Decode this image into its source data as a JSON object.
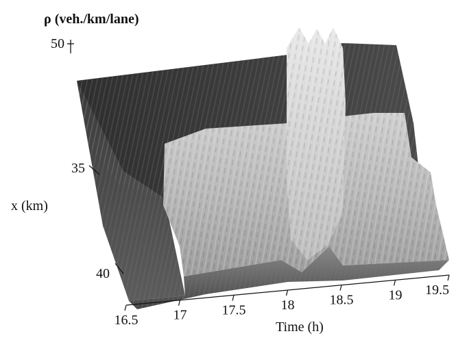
{
  "chart_data": {
    "type": "surface3d",
    "title": "",
    "zlabel": "ρ (veh./km/lane)",
    "ylabel": "x (km)",
    "xlabel": "Time (h)",
    "x_ticks": [
      "16.5",
      "17",
      "17.5",
      "18",
      "18.5",
      "19",
      "19.5"
    ],
    "y_ticks": [
      "35",
      "40"
    ],
    "z_ticks": [
      "50"
    ],
    "xlim": [
      16.5,
      19.5
    ],
    "zlim_top": 50,
    "surface_description": "density surface; low plateau at edges, elevated congested band between ~17.1h and ~19.3h with a sharp peak near 18.0-18.4h",
    "grid": false
  }
}
